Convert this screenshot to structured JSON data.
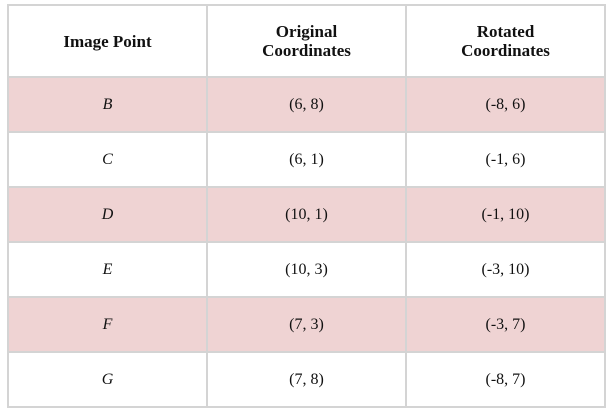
{
  "table": {
    "header": [
      "Image Point",
      "Original Coordinates",
      "Rotated Coordinates"
    ],
    "rows": [
      [
        "B",
        "(6, 8)",
        "(-8, 6)"
      ],
      [
        "C",
        "(6, 1)",
        "(-1, 6)"
      ],
      [
        "D",
        "(10, 1)",
        "(-1, 10)"
      ],
      [
        "E",
        "(10, 3)",
        "(-3, 10)"
      ],
      [
        "F",
        "(7, 3)",
        "(-3, 7)"
      ],
      [
        "G",
        "(7, 8)",
        "(-8, 7)"
      ]
    ]
  }
}
